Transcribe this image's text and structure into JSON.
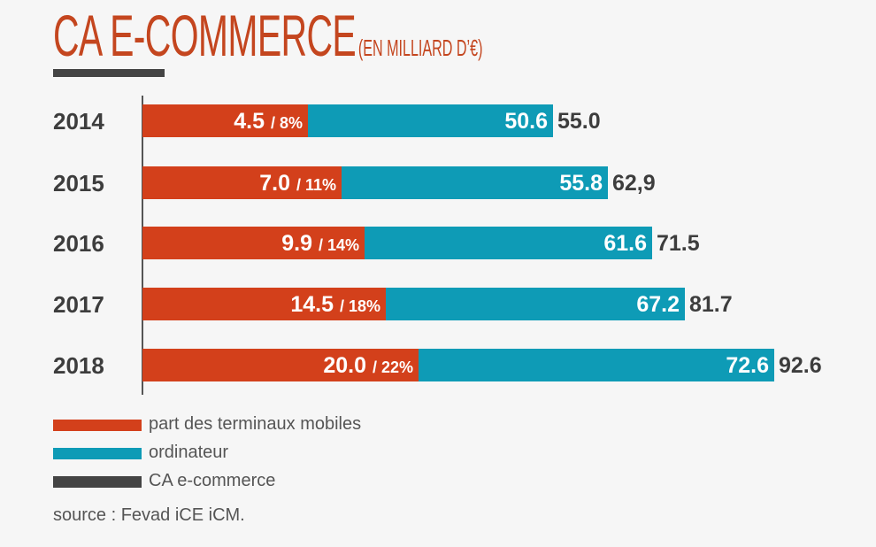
{
  "chart_data": {
    "type": "bar",
    "orientation": "horizontal",
    "stacked": true,
    "title": "CA E-COMMERCE",
    "subtitle": "(EN MILLIARD D’€)",
    "categories": [
      "2014",
      "2015",
      "2016",
      "2017",
      "2018"
    ],
    "series": [
      {
        "name": "part des terminaux mobiles",
        "color": "#d3401b",
        "values": [
          4.5,
          7.0,
          9.9,
          14.5,
          20.0
        ],
        "labels": [
          "4.5",
          "7.0",
          "9.9",
          "14.5",
          "20.0"
        ],
        "share_labels": [
          "/ 8%",
          "/ 11%",
          "/ 14%",
          "/ 18%",
          "/ 22%"
        ]
      },
      {
        "name": "ordinateur",
        "color": "#0e9bb6",
        "values": [
          50.6,
          55.8,
          61.6,
          67.2,
          72.6
        ],
        "labels": [
          "50.6",
          "55.8",
          "61.6",
          "67.2",
          "72.6"
        ]
      },
      {
        "name": "CA e-commerce",
        "color": "#444444",
        "values": [
          55.0,
          62.9,
          71.5,
          81.7,
          92.6
        ],
        "labels": [
          "55.0",
          "62,9",
          "71.5",
          "81.7",
          "92.6"
        ]
      }
    ],
    "legend_position": "bottom-left",
    "grid": false,
    "source": "source : Fevad iCE iCM."
  }
}
